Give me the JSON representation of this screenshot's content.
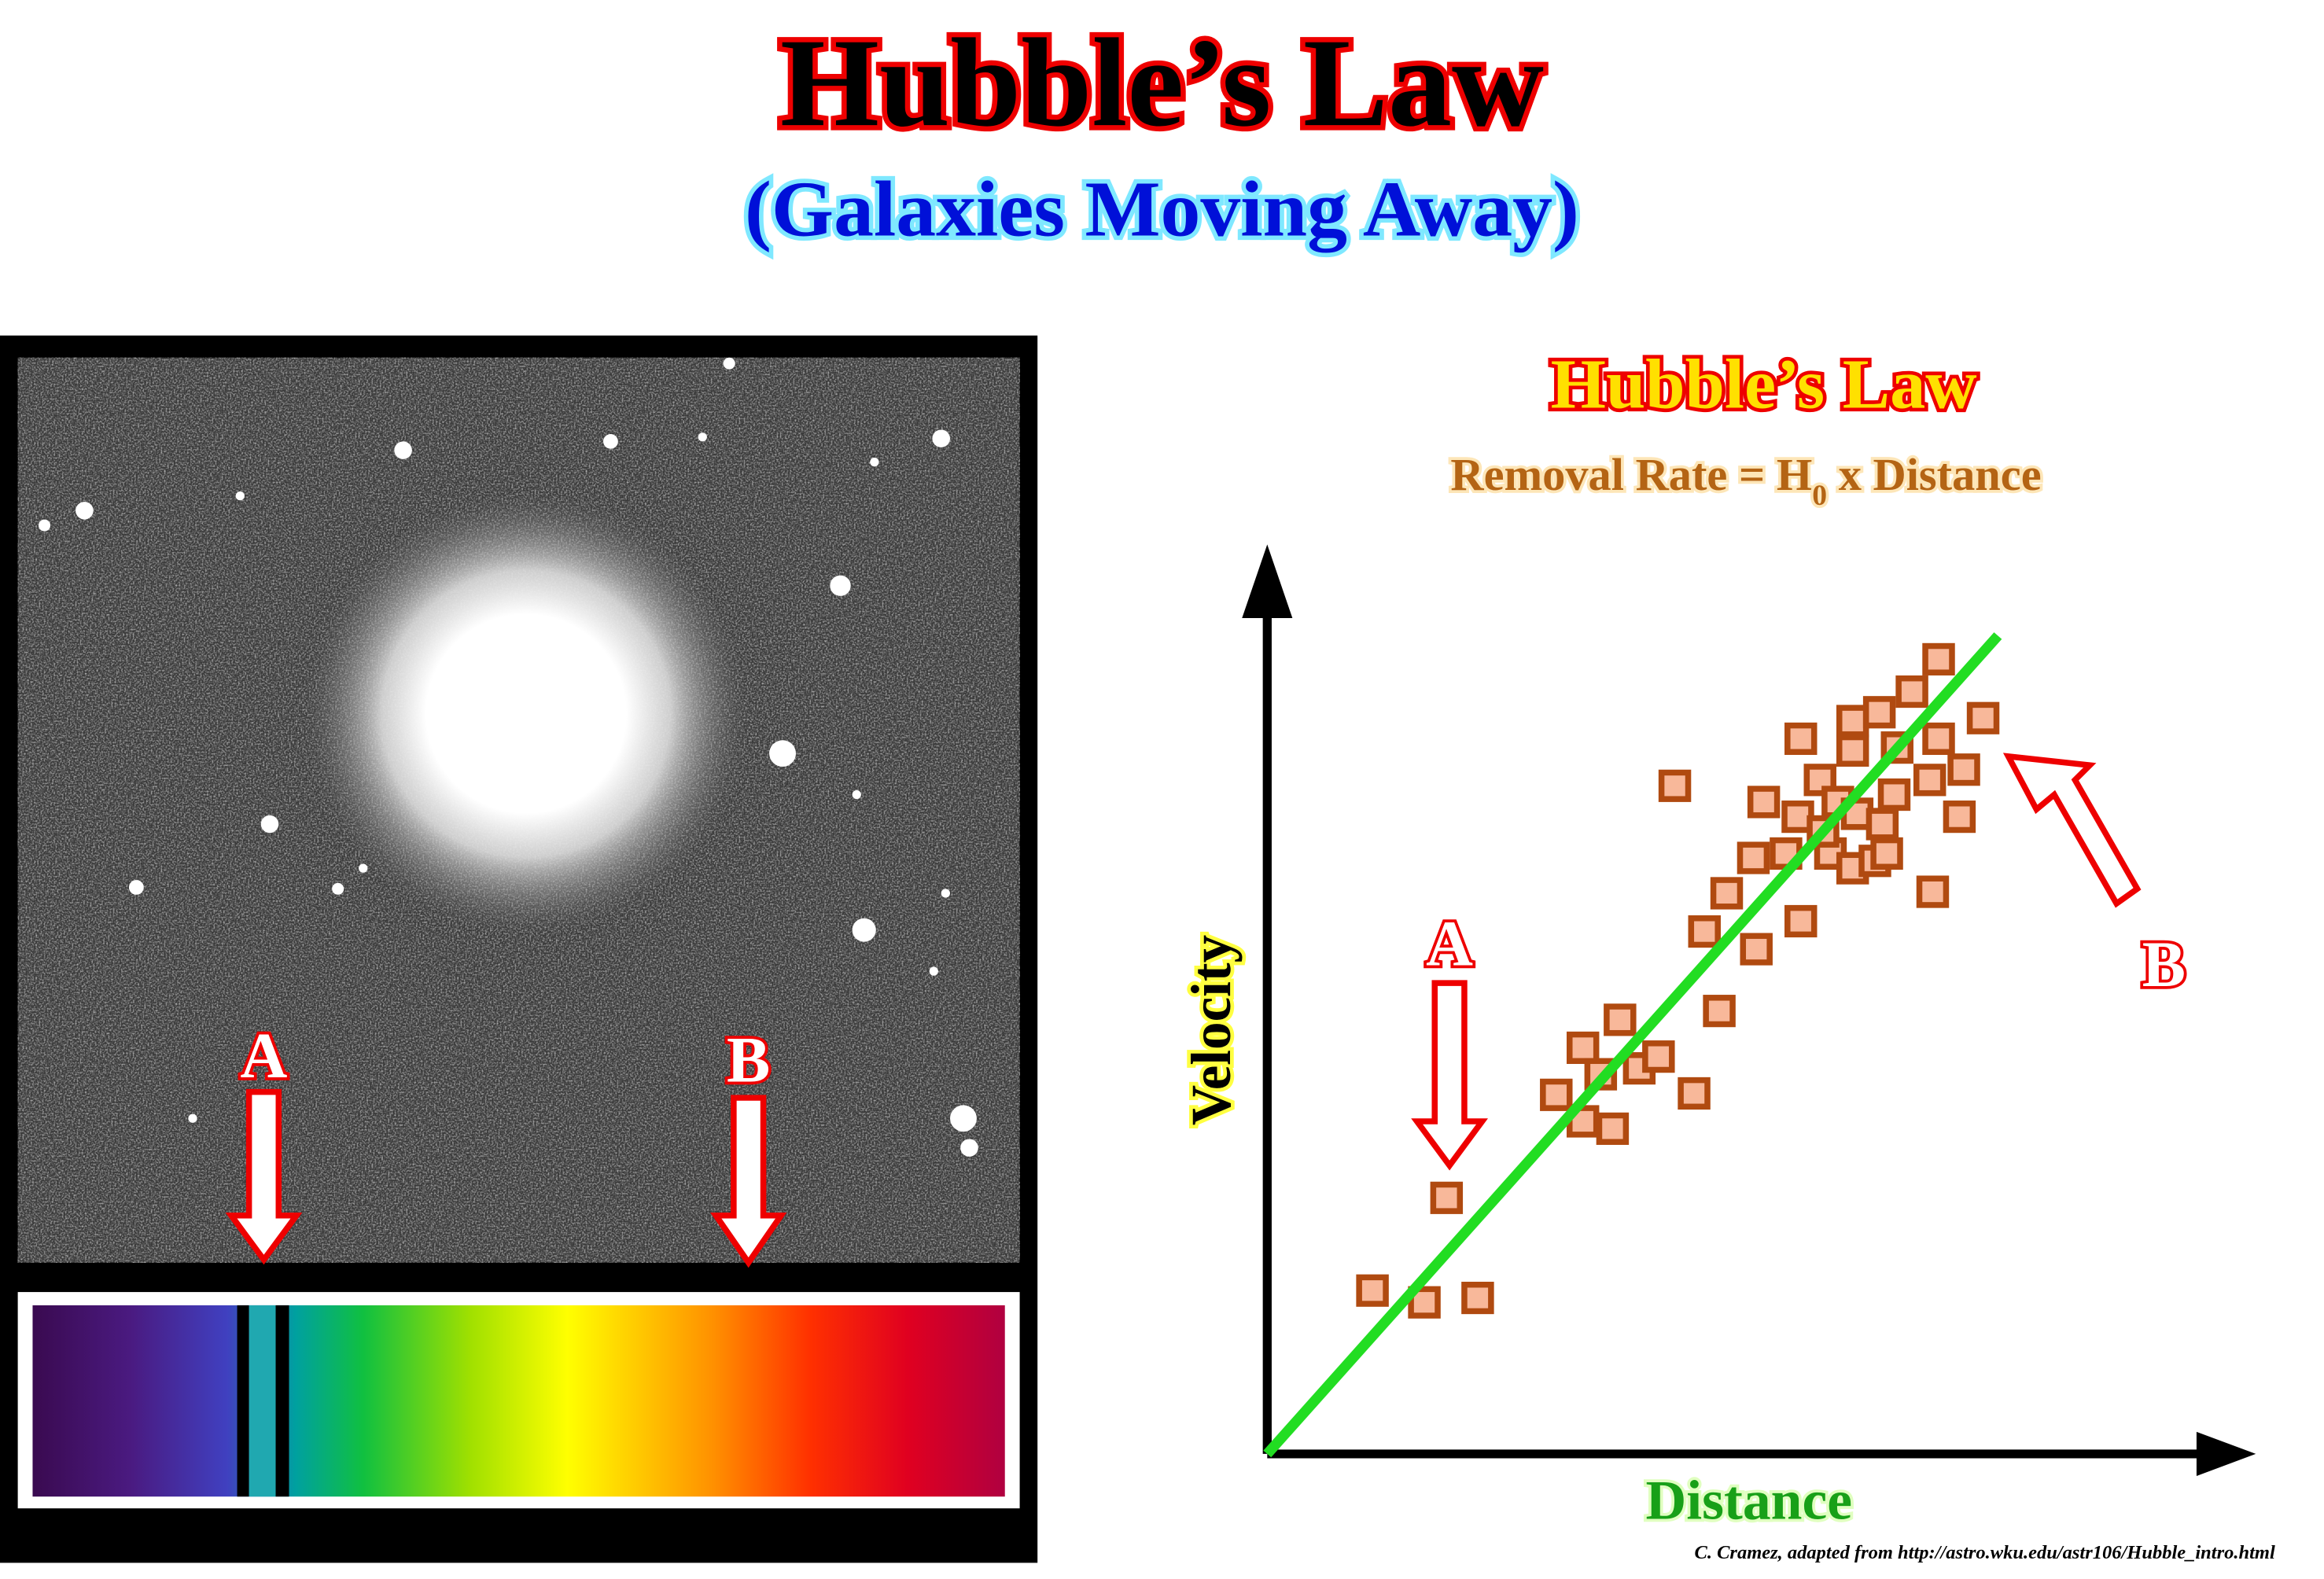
{
  "header": {
    "title": "Hubble’s Law",
    "subtitle": "(Galaxies Moving Away)"
  },
  "photo": {
    "label_a": "A",
    "label_b": "B"
  },
  "graph": {
    "title": "Hubble’s Law",
    "formula": {
      "prefix": "Removal Rate = H",
      "subscript": "0",
      "suffix": " x Distance"
    },
    "y_axis_label": "Velocity",
    "x_axis_label": "Distance",
    "label_a": "A",
    "label_b": "B"
  },
  "credit": "C. Cramez, adapted from  http://astro.wku.edu/astr106/Hubble_intro.html"
}
